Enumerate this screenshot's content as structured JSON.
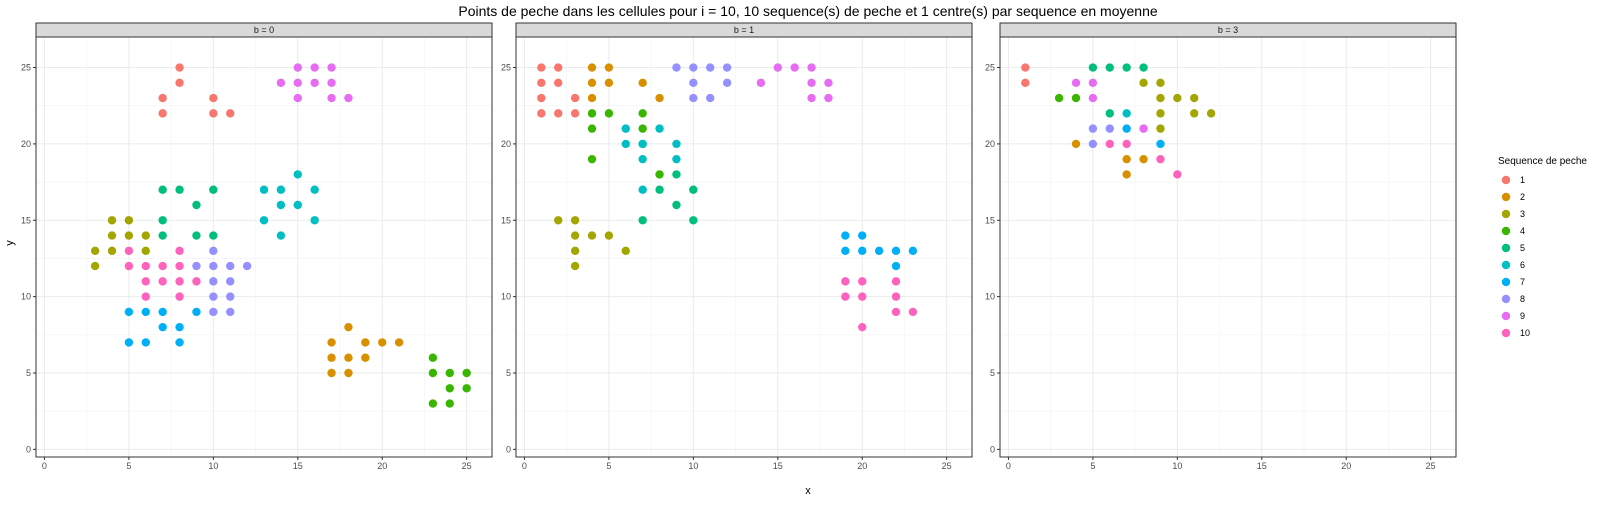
{
  "chart_data": {
    "type": "scatter",
    "title": "Points de peche dans les cellules pour i = 10, 10 sequence(s) de peche et 1 centre(s) par sequence en moyenne",
    "xlabel": "x",
    "ylabel": "y",
    "xlim": [
      -0.5,
      26.5
    ],
    "ylim": [
      -0.5,
      27
    ],
    "x_ticks": [
      0,
      5,
      10,
      15,
      20,
      25
    ],
    "y_ticks": [
      0,
      5,
      10,
      15,
      20,
      25
    ],
    "grid": true,
    "legend": {
      "title": "Sequence de peche",
      "position": "right",
      "entries": [
        "1",
        "2",
        "3",
        "4",
        "5",
        "6",
        "7",
        "8",
        "9",
        "10"
      ],
      "colors": [
        "#F8766D",
        "#D89000",
        "#A3A500",
        "#39B600",
        "#00BF7D",
        "#00BFC4",
        "#00B0F6",
        "#9590FF",
        "#E76BF3",
        "#FF62BC"
      ]
    },
    "panels": [
      {
        "label": "b = 0",
        "series": [
          {
            "name": "1",
            "points": [
              [
                8,
                25
              ],
              [
                8,
                24
              ],
              [
                7,
                23
              ],
              [
                7,
                22
              ],
              [
                10,
                23
              ],
              [
                10,
                22
              ],
              [
                11,
                22
              ]
            ]
          },
          {
            "name": "2",
            "points": [
              [
                18,
                8
              ],
              [
                17,
                7
              ],
              [
                19,
                7
              ],
              [
                20,
                7
              ],
              [
                21,
                7
              ],
              [
                17,
                6
              ],
              [
                18,
                6
              ],
              [
                19,
                6
              ],
              [
                17,
                5
              ],
              [
                18,
                5
              ]
            ]
          },
          {
            "name": "3",
            "points": [
              [
                4,
                15
              ],
              [
                5,
                15
              ],
              [
                4,
                14
              ],
              [
                5,
                14
              ],
              [
                6,
                14
              ],
              [
                3,
                13
              ],
              [
                4,
                13
              ],
              [
                6,
                13
              ],
              [
                3,
                12
              ]
            ]
          },
          {
            "name": "4",
            "points": [
              [
                23,
                6
              ],
              [
                23,
                5
              ],
              [
                24,
                5
              ],
              [
                25,
                5
              ],
              [
                24,
                4
              ],
              [
                25,
                4
              ],
              [
                23,
                3
              ],
              [
                24,
                3
              ]
            ]
          },
          {
            "name": "5",
            "points": [
              [
                7,
                17
              ],
              [
                8,
                17
              ],
              [
                10,
                17
              ],
              [
                9,
                16
              ],
              [
                7,
                15
              ],
              [
                7,
                14
              ],
              [
                9,
                14
              ],
              [
                10,
                14
              ]
            ]
          },
          {
            "name": "6",
            "points": [
              [
                15,
                18
              ],
              [
                13,
                17
              ],
              [
                14,
                17
              ],
              [
                16,
                17
              ],
              [
                14,
                16
              ],
              [
                15,
                16
              ],
              [
                13,
                15
              ],
              [
                16,
                15
              ],
              [
                14,
                14
              ]
            ]
          },
          {
            "name": "7",
            "points": [
              [
                5,
                9
              ],
              [
                6,
                9
              ],
              [
                7,
                9
              ],
              [
                9,
                9
              ],
              [
                7,
                8
              ],
              [
                8,
                8
              ],
              [
                5,
                7
              ],
              [
                6,
                7
              ],
              [
                8,
                7
              ]
            ]
          },
          {
            "name": "8",
            "points": [
              [
                10,
                13
              ],
              [
                9,
                12
              ],
              [
                10,
                12
              ],
              [
                11,
                12
              ],
              [
                12,
                12
              ],
              [
                10,
                11
              ],
              [
                11,
                11
              ],
              [
                10,
                10
              ],
              [
                11,
                10
              ],
              [
                10,
                9
              ],
              [
                11,
                9
              ]
            ]
          },
          {
            "name": "9",
            "points": [
              [
                15,
                25
              ],
              [
                16,
                25
              ],
              [
                17,
                25
              ],
              [
                14,
                24
              ],
              [
                15,
                24
              ],
              [
                16,
                24
              ],
              [
                17,
                24
              ],
              [
                15,
                23
              ],
              [
                17,
                23
              ],
              [
                18,
                23
              ]
            ]
          },
          {
            "name": "10",
            "points": [
              [
                5,
                13
              ],
              [
                8,
                13
              ],
              [
                5,
                12
              ],
              [
                6,
                12
              ],
              [
                7,
                12
              ],
              [
                8,
                12
              ],
              [
                6,
                11
              ],
              [
                7,
                11
              ],
              [
                8,
                11
              ],
              [
                9,
                11
              ],
              [
                6,
                10
              ],
              [
                8,
                10
              ]
            ]
          }
        ]
      },
      {
        "label": "b = 1",
        "series": [
          {
            "name": "1",
            "points": [
              [
                1,
                25
              ],
              [
                2,
                25
              ],
              [
                1,
                24
              ],
              [
                2,
                24
              ],
              [
                1,
                23
              ],
              [
                3,
                23
              ],
              [
                1,
                22
              ],
              [
                2,
                22
              ],
              [
                3,
                22
              ]
            ]
          },
          {
            "name": "2",
            "points": [
              [
                4,
                25
              ],
              [
                5,
                25
              ],
              [
                4,
                24
              ],
              [
                5,
                24
              ],
              [
                7,
                24
              ],
              [
                4,
                23
              ],
              [
                8,
                23
              ]
            ]
          },
          {
            "name": "3",
            "points": [
              [
                2,
                15
              ],
              [
                3,
                15
              ],
              [
                3,
                14
              ],
              [
                4,
                14
              ],
              [
                5,
                14
              ],
              [
                3,
                13
              ],
              [
                6,
                13
              ],
              [
                3,
                12
              ]
            ]
          },
          {
            "name": "4",
            "points": [
              [
                4,
                22
              ],
              [
                5,
                22
              ],
              [
                7,
                22
              ],
              [
                4,
                21
              ],
              [
                7,
                21
              ],
              [
                4,
                19
              ],
              [
                8,
                18
              ]
            ]
          },
          {
            "name": "5",
            "points": [
              [
                7,
                20
              ],
              [
                9,
                18
              ],
              [
                8,
                17
              ],
              [
                10,
                17
              ],
              [
                9,
                16
              ],
              [
                7,
                15
              ],
              [
                10,
                15
              ]
            ]
          },
          {
            "name": "6",
            "points": [
              [
                6,
                21
              ],
              [
                8,
                21
              ],
              [
                6,
                20
              ],
              [
                7,
                20
              ],
              [
                9,
                20
              ],
              [
                7,
                19
              ],
              [
                9,
                19
              ],
              [
                7,
                17
              ]
            ]
          },
          {
            "name": "7",
            "points": [
              [
                19,
                14
              ],
              [
                20,
                14
              ],
              [
                19,
                13
              ],
              [
                20,
                13
              ],
              [
                21,
                13
              ],
              [
                22,
                13
              ],
              [
                23,
                13
              ],
              [
                22,
                12
              ]
            ]
          },
          {
            "name": "8",
            "points": [
              [
                9,
                25
              ],
              [
                10,
                25
              ],
              [
                11,
                25
              ],
              [
                12,
                25
              ],
              [
                10,
                24
              ],
              [
                12,
                24
              ],
              [
                10,
                23
              ],
              [
                11,
                23
              ]
            ]
          },
          {
            "name": "9",
            "points": [
              [
                15,
                25
              ],
              [
                16,
                25
              ],
              [
                17,
                25
              ],
              [
                14,
                24
              ],
              [
                17,
                24
              ],
              [
                18,
                24
              ],
              [
                17,
                23
              ],
              [
                18,
                23
              ]
            ]
          },
          {
            "name": "10",
            "points": [
              [
                19,
                11
              ],
              [
                20,
                11
              ],
              [
                22,
                11
              ],
              [
                19,
                10
              ],
              [
                20,
                10
              ],
              [
                22,
                10
              ],
              [
                22,
                9
              ],
              [
                23,
                9
              ],
              [
                20,
                8
              ]
            ]
          }
        ]
      },
      {
        "label": "b = 3",
        "series": [
          {
            "name": "1",
            "points": [
              [
                1,
                25
              ],
              [
                1,
                24
              ]
            ]
          },
          {
            "name": "2",
            "points": [
              [
                4,
                20
              ],
              [
                7,
                19
              ],
              [
                8,
                19
              ],
              [
                7,
                18
              ]
            ]
          },
          {
            "name": "3",
            "points": [
              [
                8,
                24
              ],
              [
                9,
                24
              ],
              [
                9,
                23
              ],
              [
                10,
                23
              ],
              [
                11,
                23
              ],
              [
                9,
                22
              ],
              [
                11,
                22
              ],
              [
                12,
                22
              ],
              [
                9,
                21
              ]
            ]
          },
          {
            "name": "4",
            "points": [
              [
                3,
                23
              ],
              [
                4,
                23
              ]
            ]
          },
          {
            "name": "5",
            "points": [
              [
                5,
                25
              ],
              [
                6,
                25
              ],
              [
                7,
                25
              ],
              [
                8,
                25
              ],
              [
                6,
                22
              ]
            ]
          },
          {
            "name": "6",
            "points": [
              [
                7,
                22
              ]
            ]
          },
          {
            "name": "7",
            "points": [
              [
                7,
                21
              ],
              [
                9,
                20
              ]
            ]
          },
          {
            "name": "8",
            "points": [
              [
                5,
                21
              ],
              [
                6,
                21
              ],
              [
                5,
                20
              ]
            ]
          },
          {
            "name": "9",
            "points": [
              [
                4,
                24
              ],
              [
                5,
                24
              ],
              [
                5,
                23
              ],
              [
                8,
                21
              ]
            ]
          },
          {
            "name": "10",
            "points": [
              [
                6,
                20
              ],
              [
                7,
                20
              ],
              [
                9,
                19
              ],
              [
                10,
                18
              ]
            ]
          }
        ]
      }
    ]
  }
}
